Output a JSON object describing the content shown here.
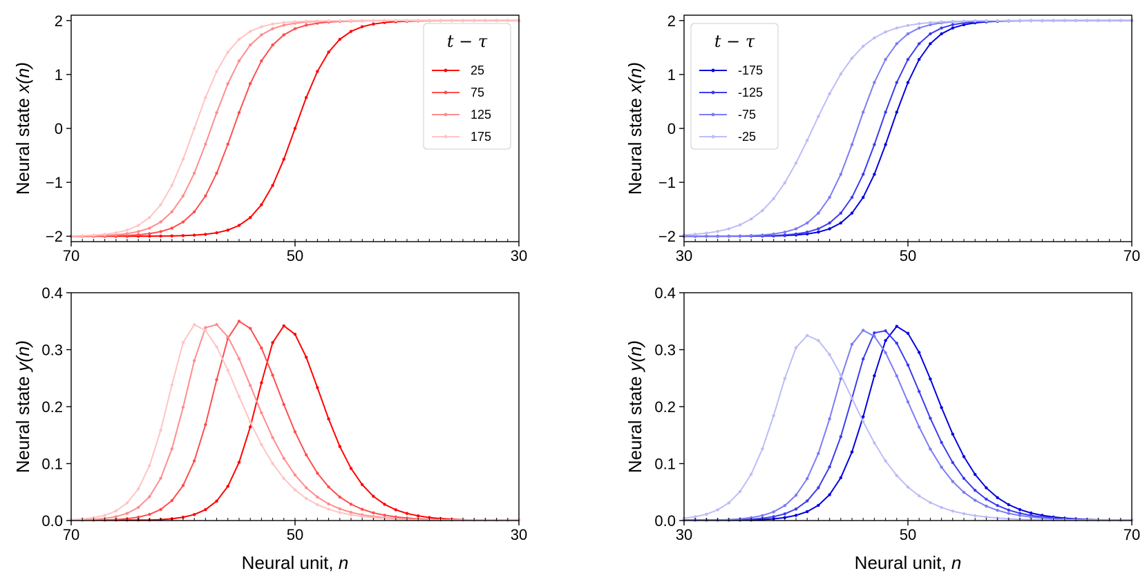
{
  "figure": {
    "xlabel": "Neural unit, ",
    "xlabel_var": "n"
  },
  "chart_data": [
    {
      "id": "top-left",
      "type": "line",
      "xlim": [
        70,
        30
      ],
      "ylim": [
        -2.1,
        2.1
      ],
      "xticks": [
        70,
        50,
        30
      ],
      "xtick_labels": [
        "70",
        "50",
        "30"
      ],
      "yticks": [
        -2,
        -1,
        0,
        1,
        2
      ],
      "ytick_labels": [
        "−2",
        "−1",
        "0",
        "1",
        "2"
      ],
      "ylabel_prefix": "Neural state ",
      "ylabel_var": "x(n)",
      "xlabel": "",
      "legend": {
        "title": "t − τ",
        "position": "top-right"
      },
      "series": [
        {
          "name": "25",
          "color": "#ff0000",
          "func": "x",
          "center": 50.0,
          "width": 3.4
        },
        {
          "name": "75",
          "color": "#ff4d4d",
          "func": "x",
          "center": 55.5,
          "width": 3.4
        },
        {
          "name": "125",
          "color": "#ff8c8c",
          "func": "x",
          "center": 57.5,
          "width": 3.4
        },
        {
          "name": "175",
          "color": "#ffc4c4",
          "func": "x",
          "center": 59.0,
          "width": 3.4
        }
      ]
    },
    {
      "id": "top-right",
      "type": "line",
      "xlim": [
        30,
        70
      ],
      "ylim": [
        -2.1,
        2.1
      ],
      "xticks": [
        30,
        50,
        70
      ],
      "xtick_labels": [
        "30",
        "50",
        "70"
      ],
      "yticks": [
        -2,
        -1,
        0,
        1,
        2
      ],
      "ytick_labels": [
        "−2",
        "−1",
        "0",
        "1",
        "2"
      ],
      "ylabel_prefix": "Neural state ",
      "ylabel_var": "x(n)",
      "xlabel": "",
      "legend": {
        "title": "t − τ",
        "position": "top-left"
      },
      "series": [
        {
          "name": "-175",
          "color": "#0000e0",
          "func": "x",
          "center": 48.5,
          "width": 3.3
        },
        {
          "name": "-125",
          "color": "#3b3bef",
          "func": "x",
          "center": 47.5,
          "width": 3.3
        },
        {
          "name": "-75",
          "color": "#7b7bf4",
          "func": "x",
          "center": 45.5,
          "width": 3.3
        },
        {
          "name": "-25",
          "color": "#bcbcf8",
          "func": "x",
          "center": 41.5,
          "width": 4.5
        }
      ]
    },
    {
      "id": "bottom-left",
      "type": "line",
      "xlim": [
        70,
        30
      ],
      "ylim": [
        0.0,
        0.4
      ],
      "xticks": [
        70,
        50,
        30
      ],
      "xtick_labels": [
        "70",
        "50",
        "30"
      ],
      "yticks": [
        0.0,
        0.1,
        0.2,
        0.3,
        0.4
      ],
      "ytick_labels": [
        "0.0",
        "0.1",
        "0.2",
        "0.3",
        "0.4"
      ],
      "ylabel_prefix": "Neural state ",
      "ylabel_var": "y(n)",
      "xlabel": "Neural unit, n",
      "legend": null,
      "series": [
        {
          "name": "25",
          "color": "#ff0000",
          "func": "y",
          "peakN": 51.0,
          "peak": 0.342,
          "wL": 4.7,
          "wR": 3.3
        },
        {
          "name": "75",
          "color": "#ff4d4d",
          "func": "y",
          "peakN": 55.0,
          "peak": 0.35,
          "wL": 5.2,
          "wR": 3.3
        },
        {
          "name": "125",
          "color": "#ff8c8c",
          "func": "y",
          "peakN": 57.5,
          "peak": 0.347,
          "wL": 5.5,
          "wR": 3.2
        },
        {
          "name": "175",
          "color": "#ffc4c4",
          "func": "y",
          "peakN": 59.0,
          "peak": 0.344,
          "wL": 5.7,
          "wR": 3.2
        }
      ]
    },
    {
      "id": "bottom-right",
      "type": "line",
      "xlim": [
        30,
        70
      ],
      "ylim": [
        0.0,
        0.4
      ],
      "xticks": [
        30,
        50,
        70
      ],
      "xtick_labels": [
        "30",
        "50",
        "70"
      ],
      "yticks": [
        0.0,
        0.1,
        0.2,
        0.3,
        0.4
      ],
      "ytick_labels": [
        "0.0",
        "0.1",
        "0.2",
        "0.3",
        "0.4"
      ],
      "ylabel_prefix": "Neural state ",
      "ylabel_var": "y(n)",
      "xlabel": "Neural unit, n",
      "legend": null,
      "series": [
        {
          "name": "-175",
          "color": "#0000e0",
          "func": "y",
          "peakN": 49.0,
          "peak": 0.341,
          "wL": 3.6,
          "wR": 5.2
        },
        {
          "name": "-125",
          "color": "#3b3bef",
          "func": "y",
          "peakN": 47.5,
          "peak": 0.336,
          "wL": 3.6,
          "wR": 5.4
        },
        {
          "name": "-75",
          "color": "#7b7bf4",
          "func": "y",
          "peakN": 46.0,
          "peak": 0.334,
          "wL": 3.6,
          "wR": 5.6
        },
        {
          "name": "-25",
          "color": "#bcbcf8",
          "func": "y",
          "peakN": 41.0,
          "peak": 0.325,
          "wL": 3.8,
          "wR": 6.0
        }
      ]
    }
  ]
}
